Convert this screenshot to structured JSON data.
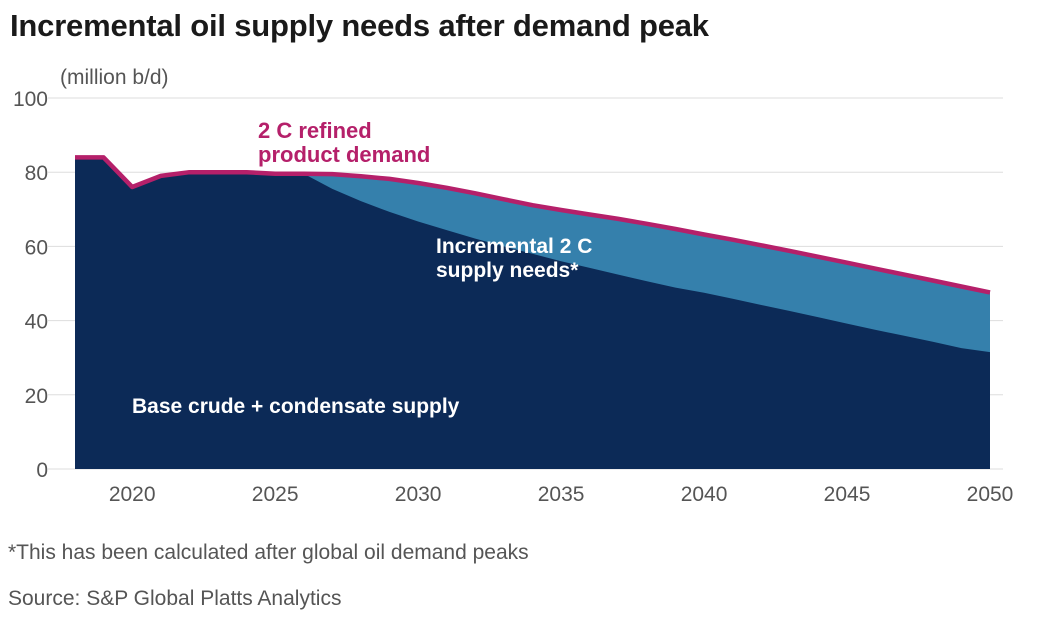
{
  "title": "Incremental oil supply needs after demand peak",
  "footnote": "*This has been calculated after global oil demand peaks",
  "source": "Source: S&P Global Platts Analytics",
  "colors": {
    "base": "#0c2a57",
    "incremental": "#3580ac",
    "demand_line": "#b5206a",
    "grid": "#dddddd",
    "axis_text": "#555555"
  },
  "chart_data": {
    "type": "area",
    "unit_label": "(million b/d)",
    "xlim": [
      2018,
      2050
    ],
    "ylim": [
      0,
      100
    ],
    "x_ticks": [
      2020,
      2025,
      2030,
      2035,
      2040,
      2045,
      2050
    ],
    "y_ticks": [
      0,
      20,
      40,
      60,
      80,
      100
    ],
    "grid": true,
    "series": [
      {
        "name": "2 C refined product demand",
        "x": [
          2018,
          2019,
          2020,
          2021,
          2022,
          2023,
          2024,
          2025,
          2026,
          2027,
          2028,
          2029,
          2030,
          2031,
          2032,
          2033,
          2034,
          2035,
          2036,
          2037,
          2038,
          2039,
          2040,
          2041,
          2042,
          2043,
          2044,
          2045,
          2046,
          2047,
          2048,
          2049,
          2050
        ],
        "values": [
          84,
          84,
          76,
          79,
          80,
          80,
          80,
          79.6,
          79.6,
          79.5,
          78.9,
          78.2,
          77.1,
          75.8,
          74.3,
          72.7,
          71.1,
          69.8,
          68.6,
          67.4,
          66.1,
          64.7,
          63.2,
          61.8,
          60.3,
          58.8,
          57.2,
          55.6,
          54,
          52.4,
          50.8,
          49.2,
          47.6
        ]
      },
      {
        "name": "Base crude + condensate supply",
        "x": [
          2018,
          2019,
          2020,
          2021,
          2022,
          2023,
          2024,
          2025,
          2026,
          2027,
          2028,
          2029,
          2030,
          2031,
          2032,
          2033,
          2034,
          2035,
          2036,
          2037,
          2038,
          2039,
          2040,
          2041,
          2042,
          2043,
          2044,
          2045,
          2046,
          2047,
          2048,
          2049,
          2050
        ],
        "values": [
          84,
          84,
          76,
          79,
          80,
          80,
          80,
          79.6,
          79.6,
          75.5,
          72.2,
          69.3,
          66.7,
          64.4,
          62.1,
          60,
          58,
          56,
          54.2,
          52.4,
          50.6,
          48.9,
          47.5,
          45.9,
          44.2,
          42.6,
          40.9,
          39.2,
          37.5,
          35.9,
          34.3,
          32.6,
          31.5
        ]
      }
    ],
    "annotations": {
      "demand": [
        "2 C refined",
        "product demand"
      ],
      "incremental": [
        "Incremental 2 C",
        "supply needs*"
      ],
      "base": "Base crude + condensate supply"
    }
  }
}
